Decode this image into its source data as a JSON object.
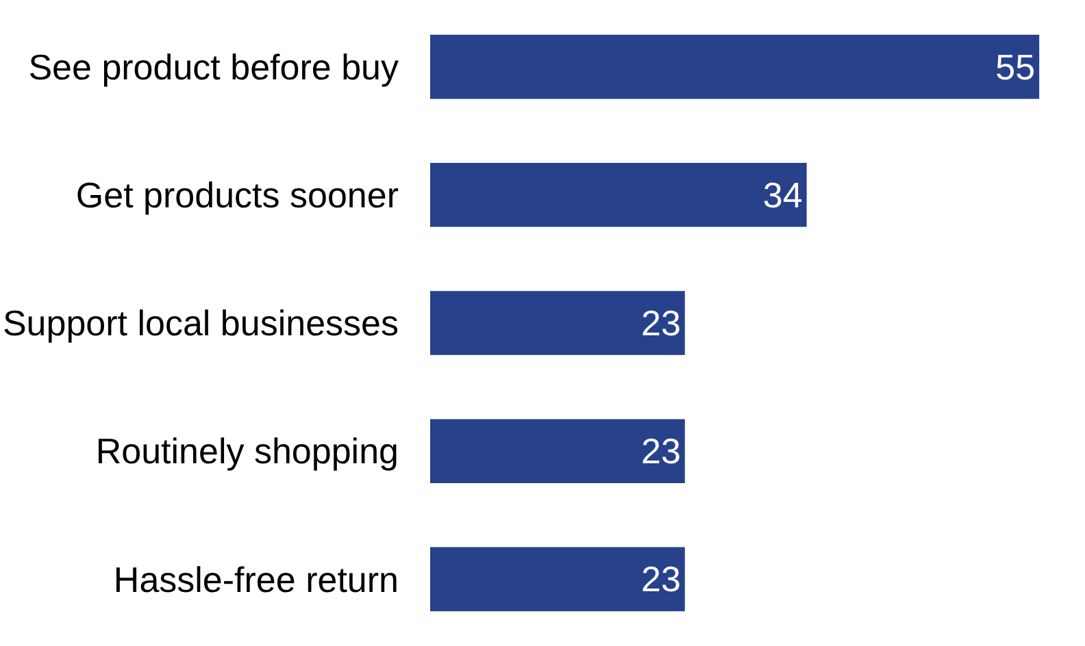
{
  "chart_data": {
    "type": "bar",
    "orientation": "horizontal",
    "categories": [
      "See product before buy",
      "Get products sooner",
      "Support local businesses",
      "Routinely shopping",
      "Hassle-free return"
    ],
    "values": [
      55,
      34,
      23,
      23,
      23
    ],
    "color": "#27418a",
    "data_labels": true
  }
}
